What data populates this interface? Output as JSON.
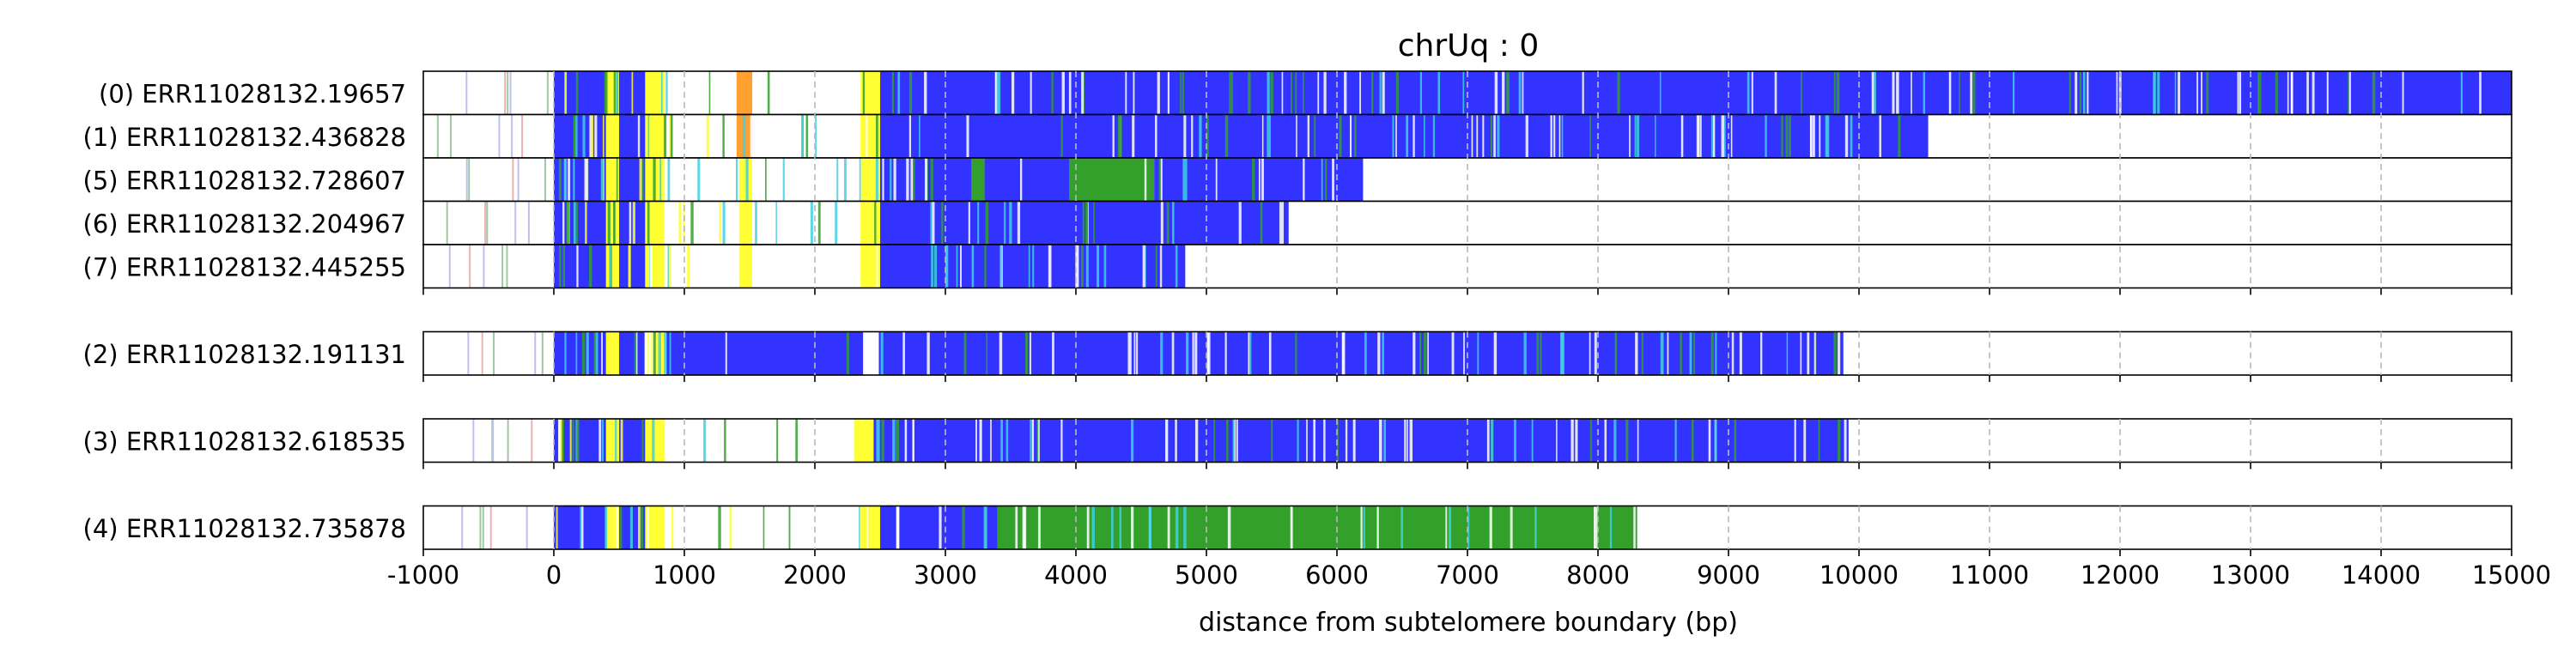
{
  "chart_data": {
    "type": "read-track-plot",
    "title": "chrUq : 0",
    "xlabel": "distance from subtelomere boundary (bp)",
    "xlim": [
      -1000,
      15000
    ],
    "xticks": [
      -1000,
      0,
      1000,
      2000,
      3000,
      4000,
      5000,
      6000,
      7000,
      8000,
      9000,
      10000,
      11000,
      12000,
      13000,
      14000,
      15000
    ],
    "grid": "vertical dashed at each x tick",
    "colors": {
      "blue": "#3333ff",
      "yellow": "#ffff33",
      "green": "#33a02c",
      "orange": "#ffa030",
      "white": "#ffffff",
      "cyan": "#40d0e0",
      "red": "#e04040",
      "pink": "#ff80c0"
    },
    "groups": [
      {
        "reads": [
          {
            "label": "(0) ERR11028132.19657",
            "start": -1000,
            "end": 15000,
            "segments": [
              [
                0,
                400,
                "blue"
              ],
              [
                400,
                500,
                "yellow"
              ],
              [
                500,
                700,
                "blue"
              ],
              [
                700,
                850,
                "yellow"
              ],
              [
                1400,
                1520,
                "orange"
              ],
              [
                2350,
                2500,
                "yellow"
              ],
              [
                2500,
                15000,
                "blue"
              ]
            ]
          },
          {
            "label": "(1) ERR11028132.436828",
            "start": -1000,
            "end": 10530,
            "segments": [
              [
                0,
                400,
                "blue"
              ],
              [
                400,
                500,
                "yellow"
              ],
              [
                500,
                700,
                "blue"
              ],
              [
                700,
                850,
                "yellow"
              ],
              [
                1400,
                1520,
                "orange"
              ],
              [
                2350,
                2500,
                "yellow"
              ],
              [
                2500,
                10530,
                "blue"
              ]
            ]
          },
          {
            "label": "(5) ERR11028132.728607",
            "start": -1000,
            "end": 6200,
            "segments": [
              [
                0,
                400,
                "blue"
              ],
              [
                400,
                500,
                "yellow"
              ],
              [
                500,
                700,
                "blue"
              ],
              [
                700,
                850,
                "yellow"
              ],
              [
                1420,
                1520,
                "yellow"
              ],
              [
                2350,
                2500,
                "yellow"
              ],
              [
                2500,
                3200,
                "blue"
              ],
              [
                3200,
                3300,
                "green"
              ],
              [
                3300,
                3950,
                "blue"
              ],
              [
                3950,
                4600,
                "green"
              ],
              [
                4600,
                6200,
                "blue"
              ]
            ]
          },
          {
            "label": "(6) ERR11028132.204967",
            "start": -1000,
            "end": 5630,
            "segments": [
              [
                0,
                400,
                "blue"
              ],
              [
                400,
                500,
                "yellow"
              ],
              [
                500,
                700,
                "blue"
              ],
              [
                700,
                850,
                "yellow"
              ],
              [
                1420,
                1520,
                "yellow"
              ],
              [
                2350,
                2500,
                "yellow"
              ],
              [
                2500,
                5630,
                "blue"
              ]
            ]
          },
          {
            "label": "(7) ERR11028132.445255",
            "start": -1000,
            "end": 4840,
            "segments": [
              [
                0,
                400,
                "blue"
              ],
              [
                400,
                500,
                "yellow"
              ],
              [
                500,
                700,
                "blue"
              ],
              [
                700,
                850,
                "yellow"
              ],
              [
                1420,
                1520,
                "yellow"
              ],
              [
                2350,
                2500,
                "yellow"
              ],
              [
                2500,
                4840,
                "blue"
              ]
            ]
          }
        ]
      },
      {
        "reads": [
          {
            "label": "(2) ERR11028132.191131",
            "start": -1000,
            "end": 9880,
            "segments": [
              [
                0,
                400,
                "blue"
              ],
              [
                400,
                500,
                "yellow"
              ],
              [
                500,
                700,
                "blue"
              ],
              [
                700,
                850,
                "yellow"
              ],
              [
                850,
                2370,
                "blue"
              ],
              [
                2370,
                2490,
                "white"
              ],
              [
                2490,
                9880,
                "blue"
              ]
            ]
          }
        ]
      },
      {
        "reads": [
          {
            "label": "(3) ERR11028132.618535",
            "start": -1000,
            "end": 9920,
            "segments": [
              [
                0,
                400,
                "blue"
              ],
              [
                400,
                500,
                "yellow"
              ],
              [
                500,
                700,
                "blue"
              ],
              [
                700,
                850,
                "yellow"
              ],
              [
                2300,
                2450,
                "yellow"
              ],
              [
                2450,
                9920,
                "blue"
              ]
            ]
          }
        ]
      },
      {
        "reads": [
          {
            "label": "(4) ERR11028132.735878",
            "start": -1000,
            "end": 8300,
            "segments": [
              [
                0,
                400,
                "blue"
              ],
              [
                400,
                500,
                "yellow"
              ],
              [
                500,
                700,
                "blue"
              ],
              [
                700,
                850,
                "yellow"
              ],
              [
                2350,
                2500,
                "yellow"
              ],
              [
                2500,
                3400,
                "blue"
              ],
              [
                3400,
                8300,
                "green"
              ]
            ]
          }
        ]
      }
    ]
  }
}
